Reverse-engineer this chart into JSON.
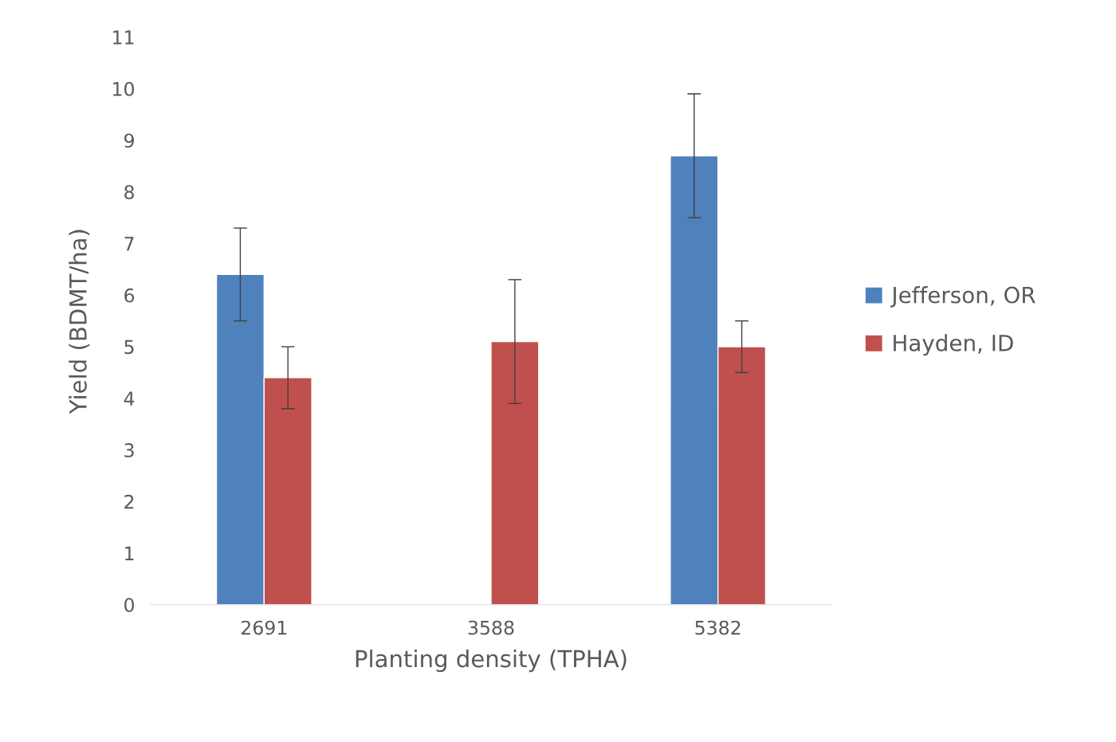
{
  "chart_data": {
    "type": "bar",
    "xlabel": "Planting density (TPHA)",
    "ylabel": "Yield (BDMT/ha)",
    "categories": [
      "2691",
      "3588",
      "5382"
    ],
    "series": [
      {
        "name": "Jefferson, OR",
        "color": "#4f81bd",
        "values": [
          6.4,
          null,
          8.7
        ],
        "errors": [
          0.9,
          null,
          1.2
        ]
      },
      {
        "name": "Hayden, ID",
        "color": "#c0504d",
        "values": [
          4.4,
          5.1,
          5.0
        ],
        "errors": [
          0.6,
          1.2,
          0.5
        ]
      }
    ],
    "ylim": [
      0,
      11
    ],
    "yticks": [
      0,
      1,
      2,
      3,
      4,
      5,
      6,
      7,
      8,
      9,
      10,
      11
    ],
    "grid": false,
    "legend": "right"
  }
}
